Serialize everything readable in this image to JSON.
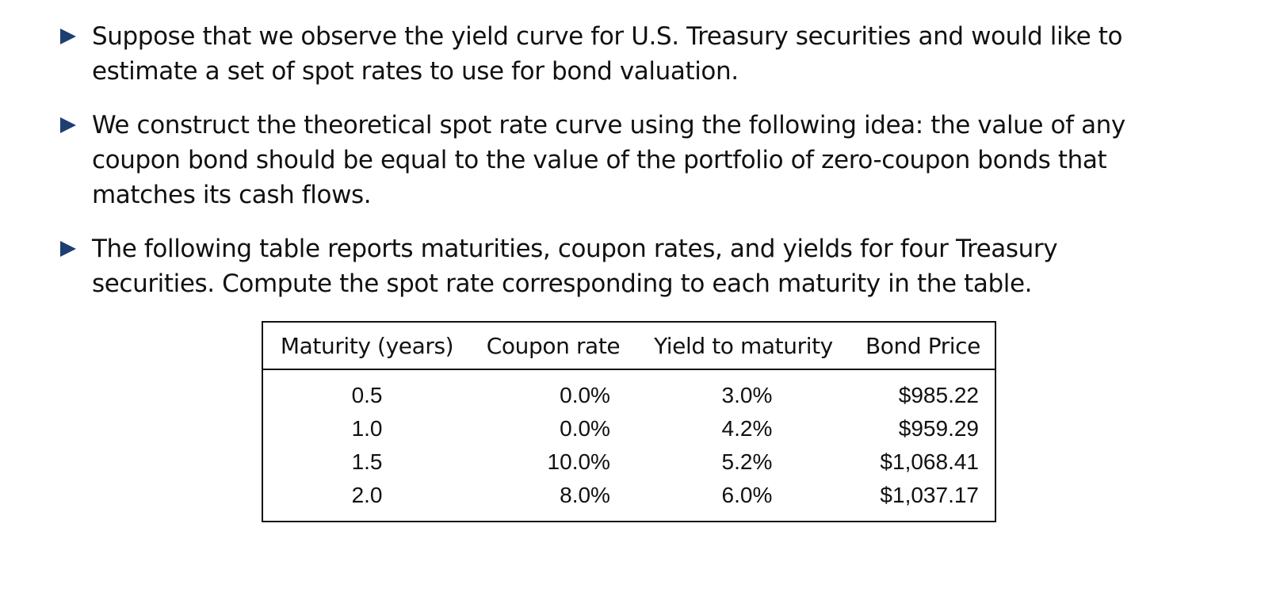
{
  "bullets": [
    "Suppose that we observe the yield curve for U.S. Treasury securities and would like to estimate a set of spot rates to use for bond valuation.",
    "We construct the theoretical spot rate curve using the following idea: the value of any coupon bond should be equal to the value of the portfolio of zero-coupon bonds that matches its cash flows.",
    "The following table reports maturities, coupon rates, and yields for four Treasury securities. Compute the spot rate corresponding to each maturity in the table."
  ],
  "table": {
    "headers": [
      "Maturity (years)",
      "Coupon rate",
      "Yield to maturity",
      "Bond Price"
    ],
    "rows": [
      [
        "0.5",
        "0.0%",
        "3.0%",
        "$985.22"
      ],
      [
        "1.0",
        "0.0%",
        "4.2%",
        "$959.29"
      ],
      [
        "1.5",
        "10.0%",
        "5.2%",
        "$1,068.41"
      ],
      [
        "2.0",
        "8.0%",
        "6.0%",
        "$1,037.17"
      ]
    ]
  },
  "colors": {
    "bullet_marker": "#1f3f73",
    "text": "#111111",
    "background": "#ffffff"
  }
}
